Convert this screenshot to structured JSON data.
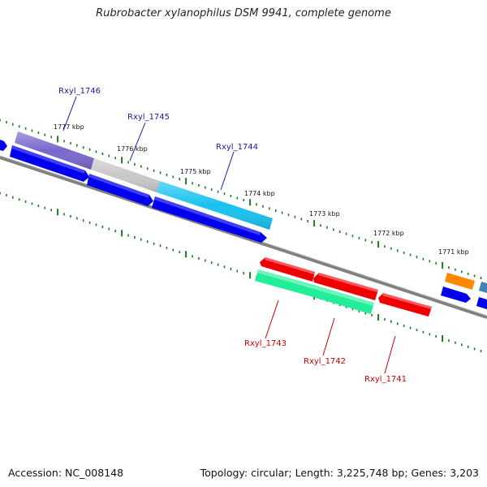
{
  "title": "Rubrobacter xylanophilus DSM 9941, complete genome",
  "footer": {
    "accession": "Accession: NC_008148",
    "info": "Topology: circular; Length: 3,225,748 bp; Genes: 3,203"
  },
  "kbp_labels": [
    {
      "id": "kbp-1777",
      "text": "1777 kbp"
    },
    {
      "id": "kbp-1776",
      "text": "1776 kbp"
    },
    {
      "id": "kbp-1775",
      "text": "1775 kbp"
    },
    {
      "id": "kbp-1774",
      "text": "1774 kbp"
    },
    {
      "id": "kbp-1773",
      "text": "1773 kbp"
    },
    {
      "id": "kbp-1772",
      "text": "1772 kbp"
    },
    {
      "id": "kbp-1771",
      "text": "1771 kbp"
    }
  ],
  "genes": {
    "forward": [
      "Rxyl_1746",
      "Rxyl_1745",
      "Rxyl_1744"
    ],
    "reverse": [
      "Rxyl_1743",
      "Rxyl_1742",
      "Rxyl_1741"
    ]
  },
  "colors": {
    "backbone": "#808080",
    "cds": "#0000ee",
    "gene_1746": "#7b68cc",
    "gene_1745": "#c8c8c8",
    "gene_1744": "#19c2f0",
    "gene_1743": "#ee0000",
    "gene_1742": "#22ee99",
    "gene_1741": "#ee0000",
    "gene_orange": "#ff8800",
    "tick": "#1f7a1f"
  }
}
